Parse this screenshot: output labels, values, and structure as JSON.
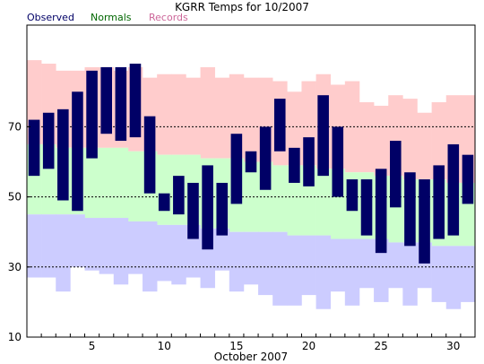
{
  "chart_data": {
    "type": "bar",
    "title": "KGRR Temps for 10/2007",
    "xlabel": "October 2007",
    "ylabel": "",
    "ylim": [
      10,
      99
    ],
    "xlim": [
      0.5,
      31.5
    ],
    "y_ticks": [
      10,
      30,
      50,
      70
    ],
    "x_ticks": [
      5,
      10,
      15,
      20,
      25,
      30
    ],
    "grid": "dashed horizontal at 30, 50, 70",
    "legend": [
      {
        "label": "Observed",
        "color": "#000066"
      },
      {
        "label": "Normals",
        "color": "#006600"
      },
      {
        "label": "Records",
        "color": "#cc6699"
      }
    ],
    "colors": {
      "records": "#ffcccc",
      "normals": "#ccffcc",
      "below_normal": "#ccccff",
      "observed": "#000066",
      "gridline": "#000000"
    },
    "days": [
      1,
      2,
      3,
      4,
      5,
      6,
      7,
      8,
      9,
      10,
      11,
      12,
      13,
      14,
      15,
      16,
      17,
      18,
      19,
      20,
      21,
      22,
      23,
      24,
      25,
      26,
      27,
      28,
      29,
      30,
      31
    ],
    "observed_high": [
      72,
      74,
      75,
      80,
      86,
      87,
      87,
      88,
      73,
      51,
      56,
      54,
      59,
      54,
      68,
      63,
      70,
      78,
      64,
      67,
      79,
      70,
      55,
      55,
      58,
      66,
      57,
      55,
      59,
      65,
      62
    ],
    "observed_low": [
      56,
      58,
      49,
      46,
      61,
      68,
      66,
      67,
      51,
      46,
      45,
      38,
      35,
      39,
      48,
      57,
      52,
      63,
      54,
      53,
      56,
      50,
      46,
      39,
      34,
      47,
      36,
      31,
      38,
      39,
      48
    ],
    "normal_high": [
      65,
      65,
      64,
      64,
      64,
      64,
      64,
      63,
      63,
      62,
      62,
      62,
      61,
      61,
      61,
      60,
      60,
      59,
      59,
      59,
      58,
      58,
      57,
      57,
      56,
      56,
      55,
      55,
      55,
      54,
      54
    ],
    "normal_low": [
      45,
      45,
      45,
      45,
      44,
      44,
      44,
      43,
      43,
      42,
      42,
      42,
      41,
      41,
      40,
      40,
      40,
      40,
      39,
      39,
      39,
      38,
      38,
      38,
      38,
      37,
      37,
      37,
      36,
      36,
      36
    ],
    "record_high": [
      89,
      88,
      86,
      86,
      87,
      87,
      86,
      87,
      84,
      85,
      85,
      84,
      87,
      84,
      85,
      84,
      84,
      83,
      80,
      83,
      85,
      82,
      83,
      77,
      76,
      79,
      78,
      74,
      77,
      79,
      79
    ],
    "record_low": [
      27,
      27,
      23,
      30,
      29,
      28,
      25,
      28,
      23,
      26,
      25,
      27,
      24,
      29,
      23,
      25,
      22,
      19,
      19,
      22,
      18,
      23,
      19,
      24,
      20,
      24,
      19,
      24,
      20,
      18,
      20
    ]
  }
}
